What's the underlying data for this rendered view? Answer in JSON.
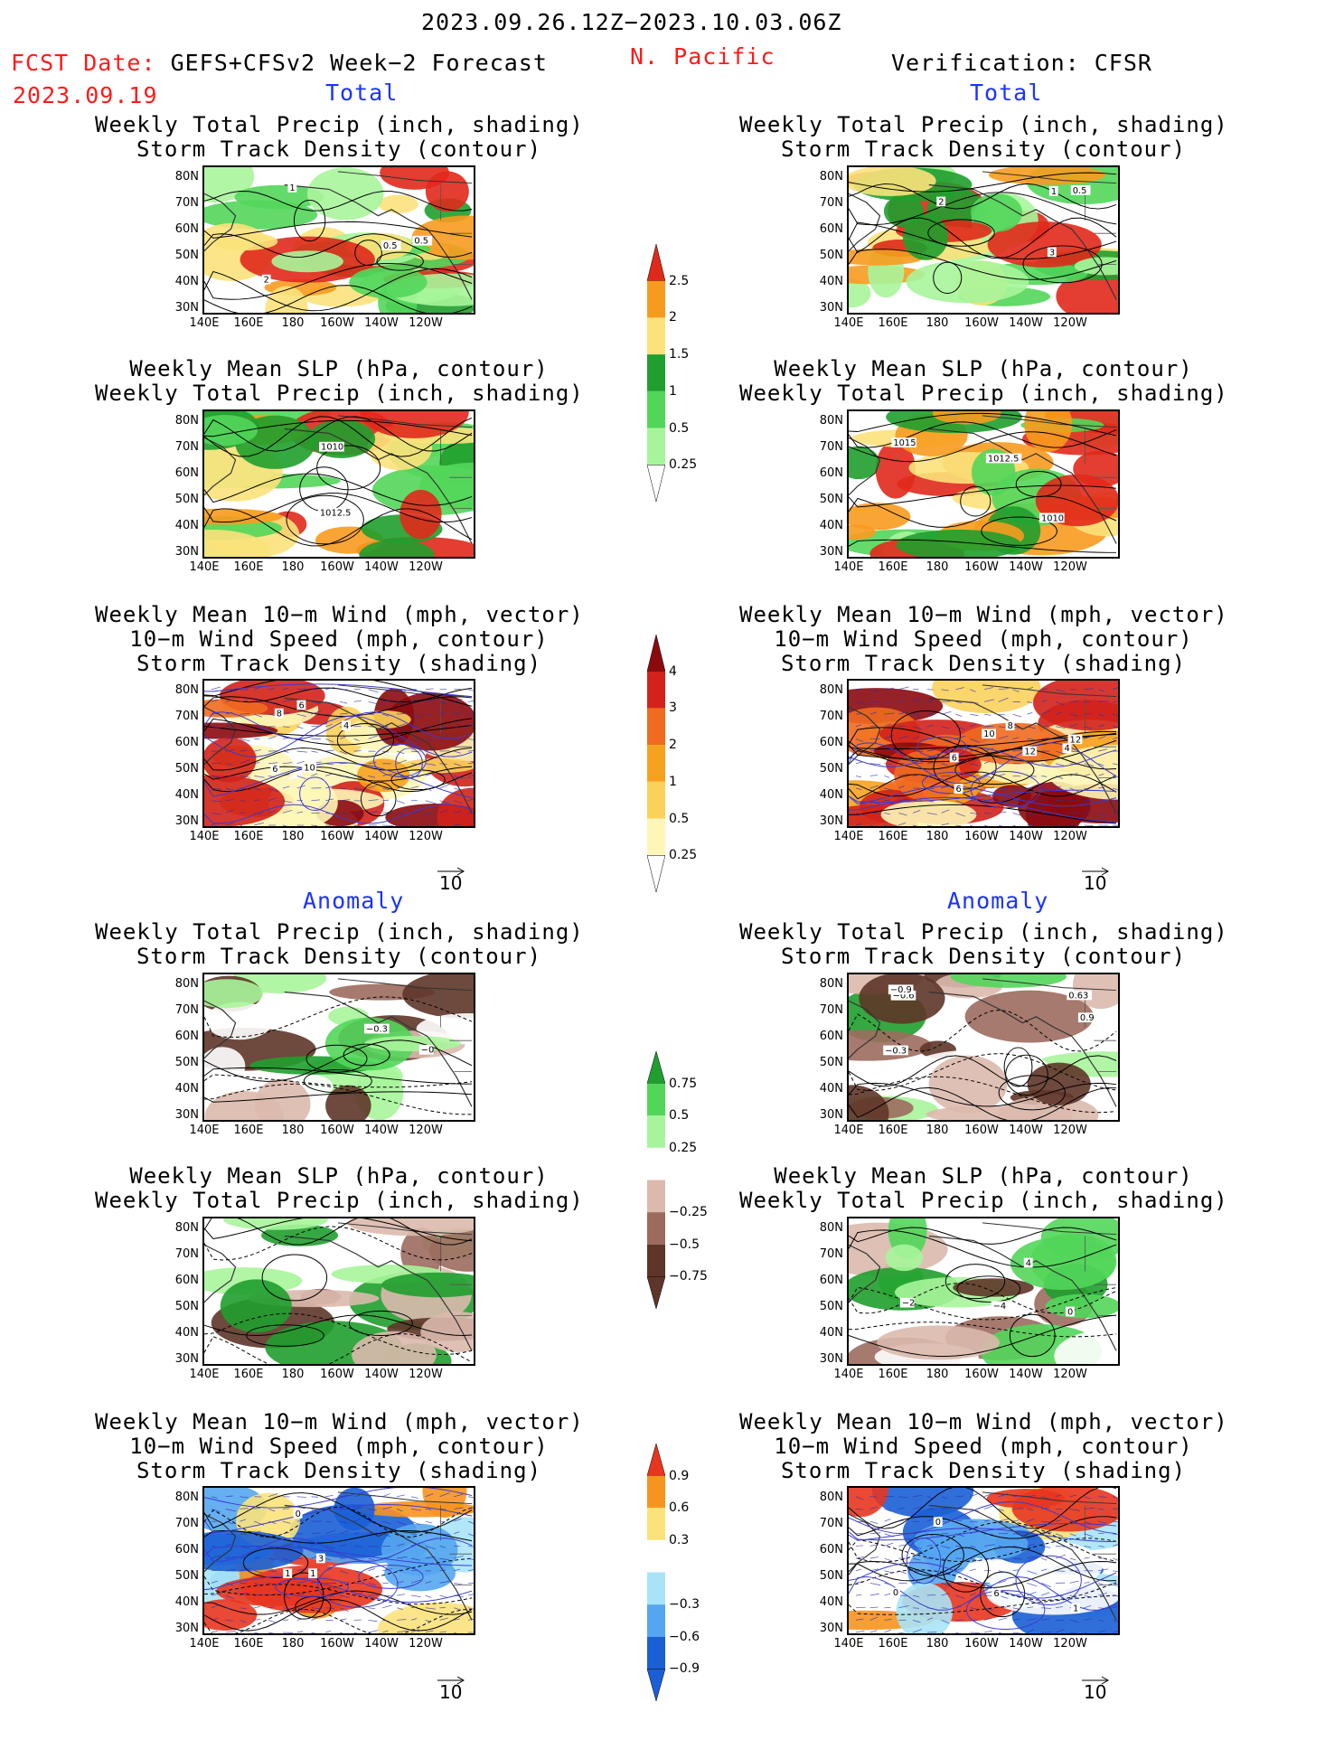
{
  "header": {
    "period": "2023.09.26.12Z−2023.10.03.06Z",
    "fcst_label": "FCST Date:",
    "fcst_model": "GEFS+CFSv2 Week−2 Forecast",
    "fcst_date": "2023.09.19",
    "region": "N. Pacific",
    "verification": "Verification: CFSR"
  },
  "sections": {
    "total": "Total",
    "anomaly": "Anomaly"
  },
  "titles": {
    "precip_storm": [
      "Weekly Total Precip (inch, shading)",
      "Storm Track Density (contour)"
    ],
    "slp_precip": [
      "Weekly Mean SLP (hPa, contour)",
      "Weekly Total Precip (inch, shading)"
    ],
    "wind_storm": [
      "Weekly Mean 10−m Wind (mph, vector)",
      "10−m Wind Speed (mph, contour)",
      "Storm Track Density (shading)"
    ]
  },
  "axes": {
    "lat": [
      "80N",
      "70N",
      "60N",
      "50N",
      "40N",
      "30N"
    ],
    "lon": [
      "140E",
      "160E",
      "180",
      "160W",
      "140W",
      "120W"
    ]
  },
  "vector_ref": "10",
  "colorbars": {
    "precip_total": {
      "labels": [
        "2.5",
        "2",
        "1.5",
        "1",
        "0.5",
        "0.25"
      ],
      "colors": [
        "#e0291b",
        "#f79b1f",
        "#fbe27b",
        "#1f9f2e",
        "#52d65a",
        "#a7f59a"
      ]
    },
    "storm_total": {
      "labels": [
        "4",
        "3",
        "2",
        "1",
        "0.5",
        "0.25"
      ],
      "colors": [
        "#8b0a10",
        "#d2221b",
        "#f06a1f",
        "#f7a21f",
        "#fbd15b",
        "#fdf6b7"
      ]
    },
    "precip_anom": {
      "labels": [
        "0.75",
        "0.5",
        "0.25",
        "−0.25",
        "−0.5",
        "−0.75"
      ],
      "colors": [
        "#1f9f2e",
        "#52d65a",
        "#a7f59a",
        "#ffffff",
        "#dcb9ad",
        "#9c6b5e",
        "#5e3528"
      ]
    },
    "storm_anom": {
      "labels": [
        "0.9",
        "0.6",
        "0.3",
        "−0.3",
        "−0.6",
        "−0.9"
      ],
      "colors": [
        "#e8351f",
        "#f7941f",
        "#fbe27b",
        "#ffffff",
        "#a8e4f7",
        "#55a6f0",
        "#1a5fd6"
      ]
    }
  },
  "contour_labels": {
    "fc_total_precip": [
      "0.5",
      "0.5",
      "2",
      "1"
    ],
    "fc_total_slp": [
      "1012.5",
      "1010"
    ],
    "fc_total_wind": [
      "6",
      "4",
      "8",
      "6",
      "10"
    ],
    "vf_total_precip": [
      "1",
      "2",
      "0.5",
      "3"
    ],
    "vf_total_slp": [
      "1012.5",
      "1010",
      "1015"
    ],
    "vf_total_wind": [
      "6",
      "10",
      "4",
      "12",
      "6",
      "12",
      "8"
    ],
    "fc_anom_precip": [
      "−0",
      "−0.3"
    ],
    "vf_anom_precip": [
      "−0.6",
      "−0.9",
      "−0.3",
      "0.63",
      "0.9"
    ],
    "vf_anom_slp": [
      "4",
      "−4",
      "−2",
      "0"
    ],
    "fc_anom_wind": [
      "1",
      "0",
      "1",
      "3"
    ],
    "vf_anom_wind": [
      "6",
      "0",
      "1",
      "0"
    ]
  }
}
